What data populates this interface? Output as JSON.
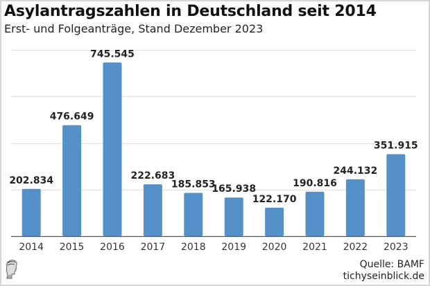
{
  "title": "Asylantragszahlen in Deutschland seit 2014",
  "subtitle": "Erst- und Folgeanträge, Stand Dezember 2023",
  "source_label": "Quelle: BAMF",
  "site_label": "tichyseinblick.de",
  "logo_icon": "classical-head-logo-icon",
  "colors": {
    "bar": "#5591c9",
    "grid": "#e6e6e6",
    "axis": "#555555",
    "label": "#222222"
  },
  "chart_data": {
    "type": "bar",
    "title": "Asylantragszahlen in Deutschland seit 2014",
    "subtitle": "Erst- und Folgeanträge, Stand Dezember 2023",
    "xlabel": "",
    "ylabel": "",
    "categories": [
      "2014",
      "2015",
      "2016",
      "2017",
      "2018",
      "2019",
      "2020",
      "2021",
      "2022",
      "2023"
    ],
    "values": [
      202834,
      476649,
      745545,
      222683,
      185853,
      165938,
      122170,
      190816,
      244132,
      351915
    ],
    "data_labels": [
      "202.834",
      "476.649",
      "745.545",
      "222.683",
      "185.853",
      "165.938",
      "122.170",
      "190.816",
      "244.132",
      "351.915"
    ],
    "ylim": [
      0,
      800000
    ],
    "gridlines": [
      200000,
      400000,
      600000,
      800000
    ],
    "grid": true,
    "y_tick_labels_visible": false,
    "legend": "none"
  }
}
